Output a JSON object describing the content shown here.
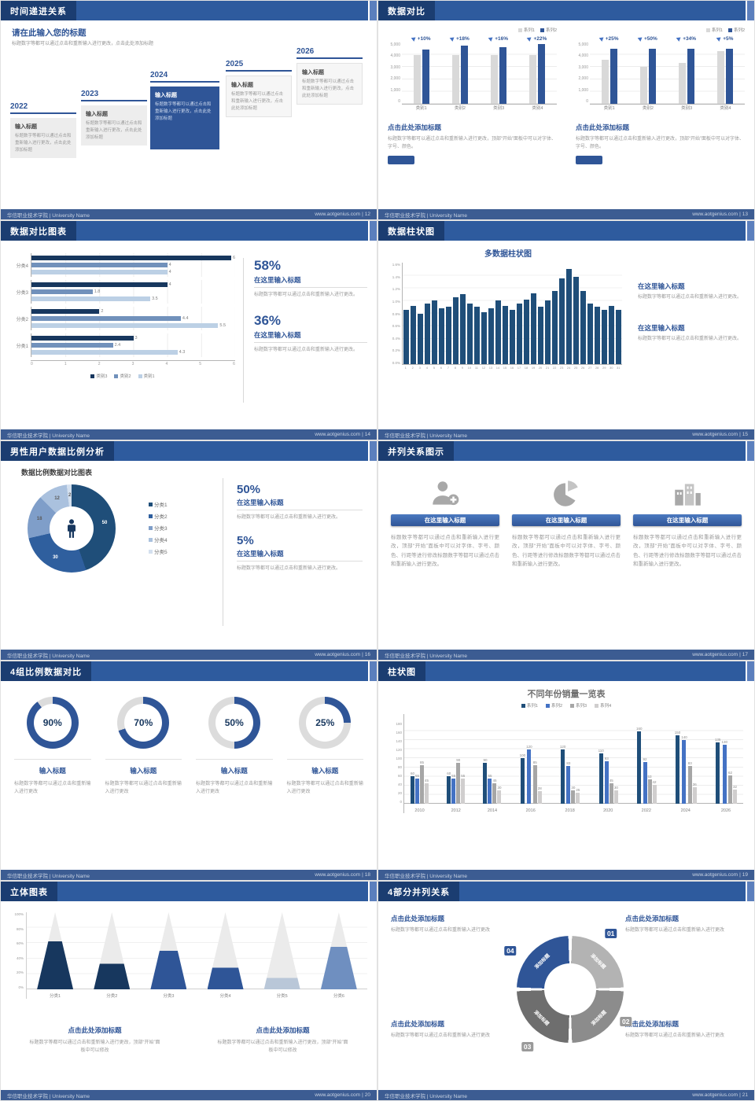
{
  "colors": {
    "accent": "#2f5597",
    "dark_navy": "#17375e",
    "header_bar": "#2e5b9e",
    "header_chip": "#1b3d71",
    "bar_gray": "#d9d9d9"
  },
  "footer": {
    "left": "华信职业技术学院 | University Name",
    "url": "www.aotgenius.com",
    "sep": "|"
  },
  "slides": {
    "s12": {
      "page": "12",
      "header": "时间递进关系",
      "intro_title": "请在此输入您的标题",
      "intro_text": "标题数字等都可以通过点击和重新输入进行更改，点击此处添加标题",
      "items": [
        {
          "year": "2022",
          "title": "输入标题",
          "text": "标题数字等都可以通过点击和重新输入进行更改，点击此处添加标题"
        },
        {
          "year": "2023",
          "title": "输入标题",
          "text": "标题数字等都可以通过点击和重新输入进行更改，点击此处添加标题"
        },
        {
          "year": "2024",
          "title": "输入标题",
          "text": "标题数字等都可以通过点击和重新输入进行更改，点击此处添加标题"
        },
        {
          "year": "2025",
          "title": "输入标题",
          "text": "标题数字等都可以通过点击和重新输入进行更改，点击此处添加标题"
        },
        {
          "year": "2026",
          "title": "输入标题",
          "text": "标题数字等都可以通过点击和重新输入进行更改，点击此处添加标题"
        }
      ]
    },
    "s13": {
      "page": "13",
      "header": "数据对比",
      "panels": [
        {
          "chart": {
            "type": "pairbar",
            "legend": [
              "系列1",
              "系列2"
            ],
            "legendColors": [
              "#d9d9d9",
              "#2f5597"
            ],
            "barColors": [
              "#d9d9d9",
              "#2f5597"
            ],
            "yticks": [
              "5,000",
              "4,000",
              "3,000",
              "2,000",
              "1,000",
              "0"
            ],
            "max": 5000,
            "categories": [
              "类别1",
              "类别2",
              "类别3",
              "类别4"
            ],
            "series1": [
              4000,
              4000,
              4000,
              4000
            ],
            "series2": [
              4400,
              4720,
              4640,
              4880
            ],
            "labels": [
              "+10%",
              "+18%",
              "+16%",
              "+22%"
            ]
          },
          "title": "点击此处添加标题",
          "text": "标题数字等都可以通过点击和重新输入进行更改，顶部“开始”面板中可以对字体、字号、颜色。"
        },
        {
          "chart": {
            "type": "pairbar",
            "legend": [
              "系列1",
              "系列2"
            ],
            "legendColors": [
              "#d9d9d9",
              "#2f5597"
            ],
            "barColors": [
              "#d9d9d9",
              "#2f5597"
            ],
            "yticks": [
              "5,000",
              "4,000",
              "3,000",
              "2,000",
              "1,000",
              "0"
            ],
            "max": 5000,
            "categories": [
              "类别1",
              "类别2",
              "类别3",
              "类别4"
            ],
            "series1": [
              3600,
              3000,
              3350,
              4300
            ],
            "series2": [
              4500,
              4500,
              4490,
              4515
            ],
            "labels": [
              "+25%",
              "+50%",
              "+34%",
              "+5%"
            ]
          },
          "title": "点击此处添加标题",
          "text": "标题数字等都可以通过点击和重新输入进行更改，顶部“开始”面板中可以对字体、字号、颜色。"
        }
      ]
    },
    "s14": {
      "page": "14",
      "header": "数据对比图表",
      "chart": {
        "type": "hbar",
        "max": 6,
        "colors": [
          "#17375e",
          "#7191bb",
          "#bcd0e5"
        ],
        "legend": [
          "类别3",
          "类别2",
          "类别1"
        ],
        "xticks": [
          "0",
          "1",
          "2",
          "3",
          "4",
          "5",
          "6"
        ],
        "groups": [
          {
            "label": "分类4",
            "values": [
              6,
              4,
              4
            ]
          },
          {
            "label": "分类3",
            "values": [
              4,
              1.8,
              3.5
            ]
          },
          {
            "label": "分类2",
            "values": [
              2,
              4.4,
              5.5
            ]
          },
          {
            "label": "分类1",
            "values": [
              3,
              2.4,
              4.3
            ]
          }
        ]
      },
      "stats": [
        {
          "pct": "58%",
          "title": "在这里输入标题",
          "text": "标题数字等都可以通过点击和重新输入进行更改。"
        },
        {
          "pct": "36%",
          "title": "在这里输入标题",
          "text": "标题数字等都可以通过点击和重新输入进行更改。"
        }
      ]
    },
    "s15": {
      "page": "15",
      "header": "数据柱状图",
      "chart_title": "多数据柱状图",
      "chart": {
        "type": "multibar",
        "color": "#1f4e79",
        "max": 1.6,
        "yticks": [
          "1.6%",
          "1.4%",
          "1.2%",
          "1.0%",
          "0.8%",
          "0.6%",
          "0.4%",
          "0.2%",
          "0.0%"
        ],
        "values": [
          0.85,
          0.92,
          0.8,
          0.95,
          1.0,
          0.88,
          0.9,
          1.05,
          1.1,
          0.95,
          0.9,
          0.82,
          0.88,
          1.0,
          0.92,
          0.85,
          0.95,
          1.02,
          1.12,
          0.9,
          1.0,
          1.15,
          1.35,
          1.5,
          1.38,
          1.15,
          0.95,
          0.9,
          0.85,
          0.92,
          0.86
        ],
        "xlabels": [
          "1",
          "2",
          "3",
          "4",
          "5",
          "6",
          "7",
          "8",
          "9",
          "10",
          "11",
          "12",
          "13",
          "14",
          "15",
          "16",
          "17",
          "18",
          "19",
          "20",
          "21",
          "22",
          "23",
          "24",
          "25",
          "26",
          "27",
          "28",
          "29",
          "30",
          "31"
        ]
      },
      "stats": [
        {
          "title": "在这里输入标题",
          "text": "标题数字等都可以通过点击和重新输入进行更改。"
        },
        {
          "title": "在这里输入标题",
          "text": "标题数字等都可以通过点击和重新输入进行更改。"
        }
      ]
    },
    "s16": {
      "page": "16",
      "header": "男性用户数据比例分析",
      "chart_title": "数据比例数据对比图表",
      "chart": {
        "type": "donut",
        "values": [
          50,
          30,
          18,
          12,
          2
        ],
        "colors": [
          "#1f4e79",
          "#2f5f9e",
          "#7f9ec9",
          "#aac1de",
          "#d4e0ef"
        ],
        "legend": [
          "分类1",
          "分类2",
          "分类3",
          "分类4",
          "分类5"
        ]
      },
      "stats": [
        {
          "pct": "50%",
          "title": "在这里输入标题",
          "text": "标题数字等都可以通过点击和重新输入进行更改。"
        },
        {
          "pct": "5%",
          "title": "在这里输入标题",
          "text": "标题数字等都可以通过点击和重新输入进行更改。"
        }
      ]
    },
    "s17": {
      "page": "17",
      "header": "并列关系图示",
      "cards": [
        {
          "icon": "nurse-icon",
          "button": "在这里输入标题",
          "text": "标题数字等都可以通过点击和重新输入进行更改，顶部“开始”面板中可以对字体、字号、颜色、行距等进行修改标题数字等都可以通过点击和重新输入进行更改。"
        },
        {
          "icon": "pie-chart-icon",
          "button": "在这里输入标题",
          "text": "标题数字等都可以通过点击和重新输入进行更改，顶部“开始”面板中可以对字体、字号、颜色、行距等进行修改标题数字等都可以通过点击和重新输入进行更改。"
        },
        {
          "icon": "building-icon",
          "button": "在这里输入标题",
          "text": "标题数字等都可以通过点击和重新输入进行更改，顶部“开始”面板中可以对字体、字号、颜色、行距等进行修改标题数字等都可以通过点击和重新输入进行更改。"
        }
      ]
    },
    "s18": {
      "page": "18",
      "header": "4组比例数据对比",
      "items": [
        {
          "pct": 90,
          "label": "90%",
          "title": "输入标题",
          "text": "标题数字等都可以通过点击和重新输入进行更改"
        },
        {
          "pct": 70,
          "label": "70%",
          "title": "输入标题",
          "text": "标题数字等都可以通过点击和重新输入进行更改"
        },
        {
          "pct": 50,
          "label": "50%",
          "title": "输入标题",
          "text": "标题数字等都可以通过点击和重新输入进行更改"
        },
        {
          "pct": 25,
          "label": "25%",
          "title": "输入标题",
          "text": "标题数字等都可以通过点击和重新输入进行更改"
        }
      ]
    },
    "s19": {
      "page": "19",
      "header": "柱状图",
      "chart_title": "不同年份销量一览表",
      "chart": {
        "type": "groupbar",
        "legend": [
          "系列1",
          "系列2",
          "系列3",
          "系列4"
        ],
        "colors": [
          "#1f4e79",
          "#4472c4",
          "#a6a6a6",
          "#d0cece"
        ],
        "max": 180,
        "yticks": [
          "180",
          "160",
          "140",
          "120",
          "100",
          "80",
          "60",
          "40",
          "20",
          "0"
        ],
        "categories": [
          "2010",
          "2012",
          "2014",
          "2016",
          "2018",
          "2020",
          "2022",
          "2024",
          "2026"
        ],
        "series": [
          {
            "name": "系列1",
            "values": [
              60,
              60,
              90,
              100,
              120,
              110,
              160,
              150,
              135
            ]
          },
          {
            "name": "系列2",
            "values": [
              55,
              55,
              55,
              120,
              83,
              93,
              92,
              140,
              130
            ]
          },
          {
            "name": "系列3",
            "values": [
              85,
              90,
              45,
              85,
              30,
              45,
              53,
              83,
              62
            ]
          },
          {
            "name": "系列4",
            "values": [
              45,
              55,
              30,
              28,
              25,
              30,
              42,
              36,
              32
            ]
          }
        ]
      }
    },
    "s20": {
      "page": "20",
      "header": "立体图表",
      "chart": {
        "type": "cones",
        "yticks": [
          "100%",
          "80%",
          "60%",
          "40%",
          "20%",
          "0%"
        ],
        "items": [
          {
            "label": "分类1",
            "fill": 62,
            "color": "#17375e"
          },
          {
            "label": "分类2",
            "fill": 33,
            "color": "#17375e"
          },
          {
            "label": "分类3",
            "fill": 50,
            "color": "#2f5597"
          },
          {
            "label": "分类4",
            "fill": 28,
            "color": "#2f5597"
          },
          {
            "label": "分类5",
            "fill": 15,
            "color": "#b9c7d8"
          },
          {
            "label": "分类6",
            "fill": 55,
            "color": "#6f8fc0"
          }
        ]
      },
      "notes": [
        {
          "title": "点击此处添加标题",
          "text": "标题数字等都可以通过点击和重新输入进行更改，顶部“开始”面板中可以修改"
        },
        {
          "title": "点击此处添加标题",
          "text": "标题数字等都可以通过点击和重新输入进行更改，顶部“开始”面板中可以修改"
        }
      ]
    },
    "s21": {
      "page": "21",
      "header": "4部分并列关系",
      "cycle": {
        "type": "cycle",
        "segments": [
          {
            "label": "添加标题",
            "color": "#b3b3b3"
          },
          {
            "label": "添加标题",
            "color": "#8c8c8c"
          },
          {
            "label": "添加标题",
            "color": "#6e6e6e"
          },
          {
            "label": "添加标题",
            "color": "#2f5597"
          }
        ],
        "numbers": [
          {
            "text": "01",
            "color": "#2f5597"
          },
          {
            "text": "02",
            "color": "#9a9a9a"
          },
          {
            "text": "03",
            "color": "#9a9a9a"
          },
          {
            "text": "04",
            "color": "#2f5597"
          }
        ]
      },
      "notes": [
        {
          "title": "点击此处添加标题",
          "text": "标题数字等都可以通过点击和重新输入进行更改"
        },
        {
          "title": "点击此处添加标题",
          "text": "标题数字等都可以通过点击和重新输入进行更改"
        },
        {
          "title": "点击此处添加标题",
          "text": "标题数字等都可以通过点击和重新输入进行更改"
        },
        {
          "title": "点击此处添加标题",
          "text": "标题数字等都可以通过点击和重新输入进行更改"
        }
      ]
    }
  }
}
